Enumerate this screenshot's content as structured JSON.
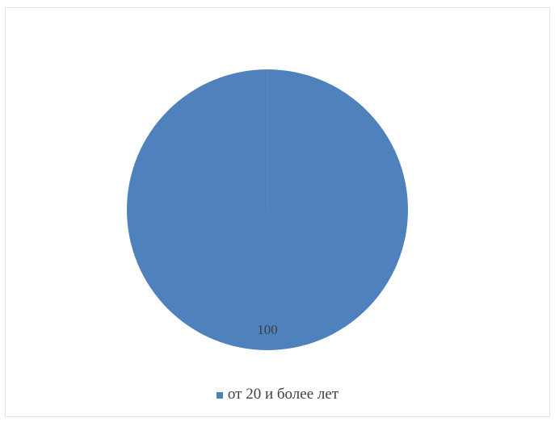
{
  "chart_data": {
    "type": "pie",
    "title": "",
    "categories": [
      "от 20 и более лет"
    ],
    "values": [
      100
    ],
    "data_labels": [
      "100"
    ],
    "colors": [
      "#4f81bd"
    ],
    "legend": {
      "placement": "bottom",
      "entries": [
        "от 20 и более лет"
      ]
    }
  }
}
